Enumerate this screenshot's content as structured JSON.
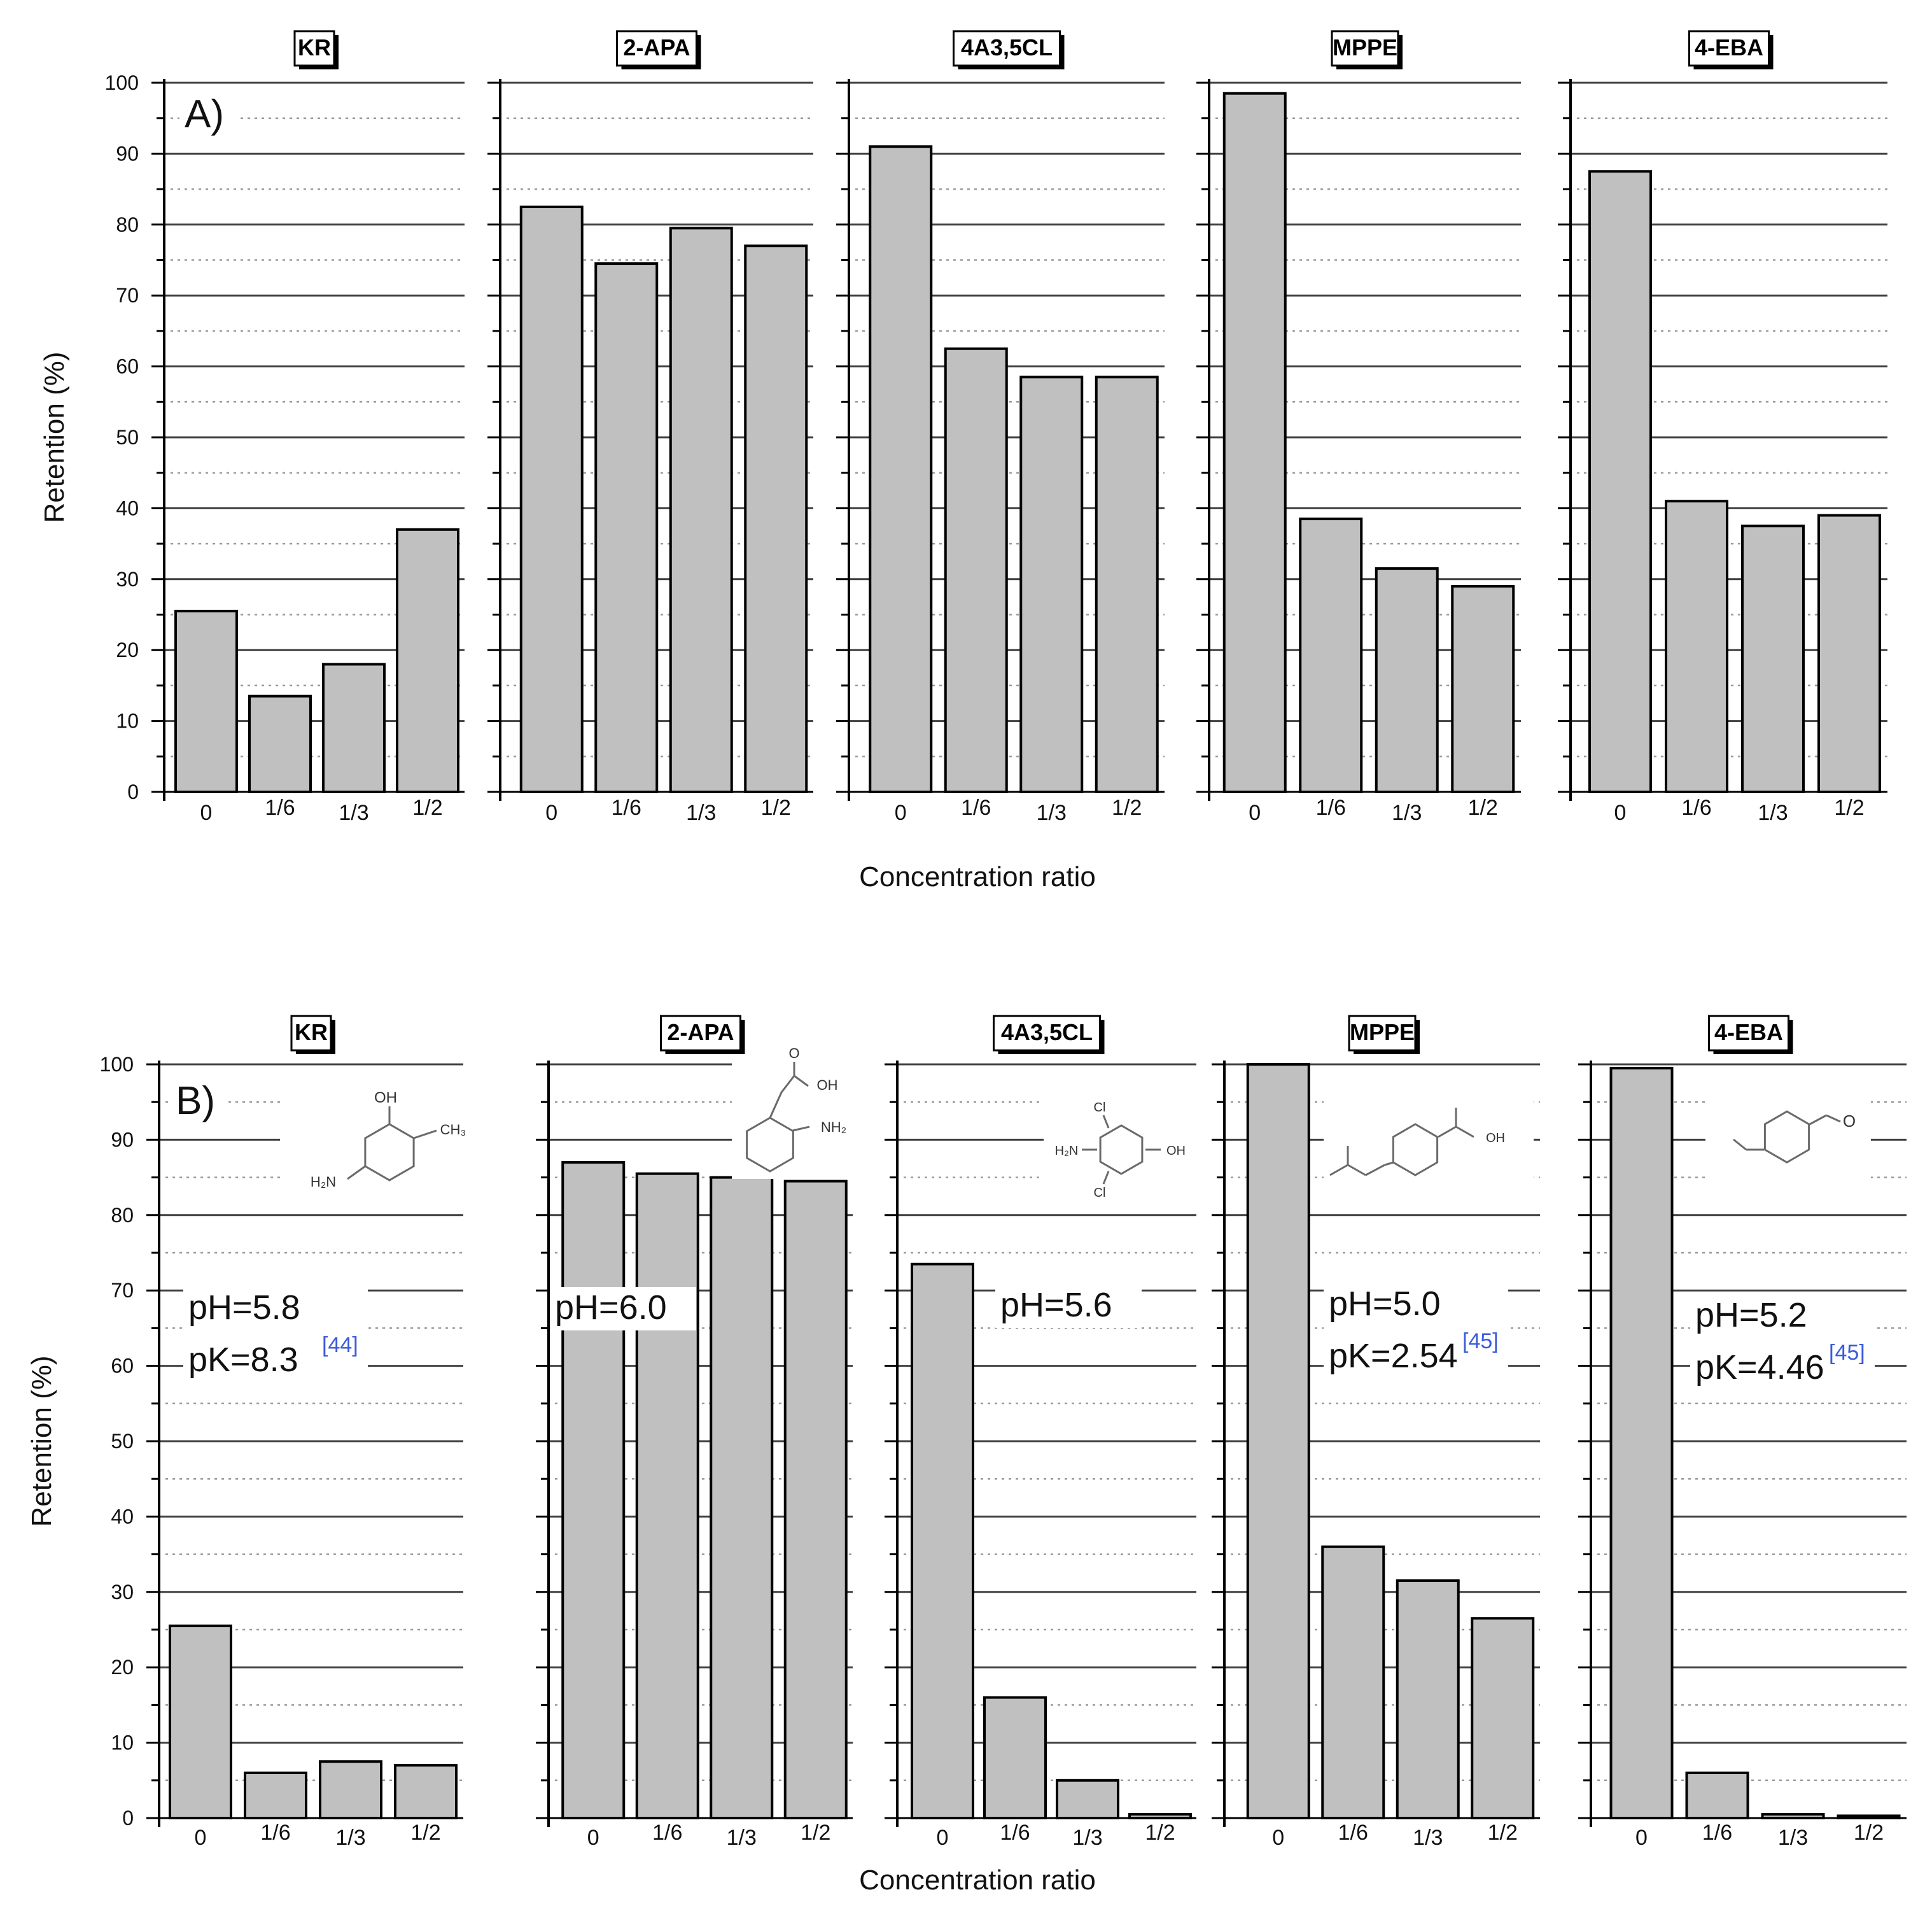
{
  "colors": {
    "bar_fill": "#c0c0c0",
    "bar_stroke": "#000000",
    "grid_major": "#404040",
    "grid_minor": "#9a9a9a",
    "ref_link": "#3b5bdb",
    "background": "#ffffff"
  },
  "chart_data": [
    {
      "type": "bar",
      "panel_label": "A)",
      "xlabel": "Concentration ratio",
      "ylabel": "Retention (%)",
      "ylim": [
        0,
        100
      ],
      "yticks": [
        "0",
        "10",
        "20",
        "30",
        "40",
        "50",
        "60",
        "70",
        "80",
        "90",
        "100"
      ],
      "categories": [
        "0",
        "1/6",
        "1/3",
        "1/2"
      ],
      "grid": "major solid every 10, minor dotted every 5",
      "subplots": [
        {
          "title": "KR",
          "values": [
            25.5,
            13.5,
            18,
            37
          ]
        },
        {
          "title": "2-APA",
          "values": [
            82.5,
            74.5,
            79.5,
            77
          ]
        },
        {
          "title": "4A3,5CL",
          "values": [
            91,
            62.5,
            58.5,
            58.5
          ]
        },
        {
          "title": "MPPE",
          "values": [
            98.5,
            38.5,
            31.5,
            29
          ]
        },
        {
          "title": "4-EBA",
          "values": [
            87.5,
            41,
            37.5,
            39
          ]
        }
      ]
    },
    {
      "type": "bar",
      "panel_label": "B)",
      "xlabel": "Concentration ratio",
      "ylabel": "Retention (%)",
      "ylim": [
        0,
        100
      ],
      "yticks": [
        "0",
        "10",
        "20",
        "30",
        "40",
        "50",
        "60",
        "70",
        "80",
        "90",
        "100"
      ],
      "categories": [
        "0",
        "1/6",
        "1/3",
        "1/2"
      ],
      "grid": "major solid every 10, minor dotted every 5",
      "subplots": [
        {
          "title": "KR",
          "values": [
            25.5,
            6,
            7.5,
            7
          ],
          "annotation": {
            "ph": "pH=5.8",
            "pk": "pK=8.3",
            "ref": "[44]"
          }
        },
        {
          "title": "2-APA",
          "values": [
            87,
            85.5,
            85,
            84.5
          ],
          "annotation": {
            "ph": "pH=6.0"
          }
        },
        {
          "title": "4A3,5CL",
          "values": [
            73.5,
            16,
            5,
            0.5
          ],
          "annotation": {
            "ph": "pH=5.6"
          }
        },
        {
          "title": "MPPE",
          "values": [
            100,
            36,
            31.5,
            26.5
          ],
          "annotation": {
            "ph": "pH=5.0",
            "pk": "pK=2.54",
            "ref": "[45]"
          }
        },
        {
          "title": "4-EBA",
          "values": [
            99.5,
            6,
            0.5,
            0.3
          ],
          "annotation": {
            "ph": "pH=5.2",
            "pk": "pK=4.46",
            "ref": "[45]"
          }
        }
      ]
    }
  ],
  "structure_labels": {
    "KR": {
      "oh": "OH",
      "ch3": "CH₃",
      "nh2": "H₂N"
    },
    "2-APA": {
      "o": "O",
      "oh": "OH",
      "nh2": "NH₂"
    },
    "4A3,5CL": {
      "cl_top": "Cl",
      "cl_bottom": "Cl",
      "nh2": "H₂N",
      "oh": "OH"
    },
    "MPPE": {
      "oh": "OH"
    },
    "4-EBA": {
      "o": "O"
    }
  }
}
